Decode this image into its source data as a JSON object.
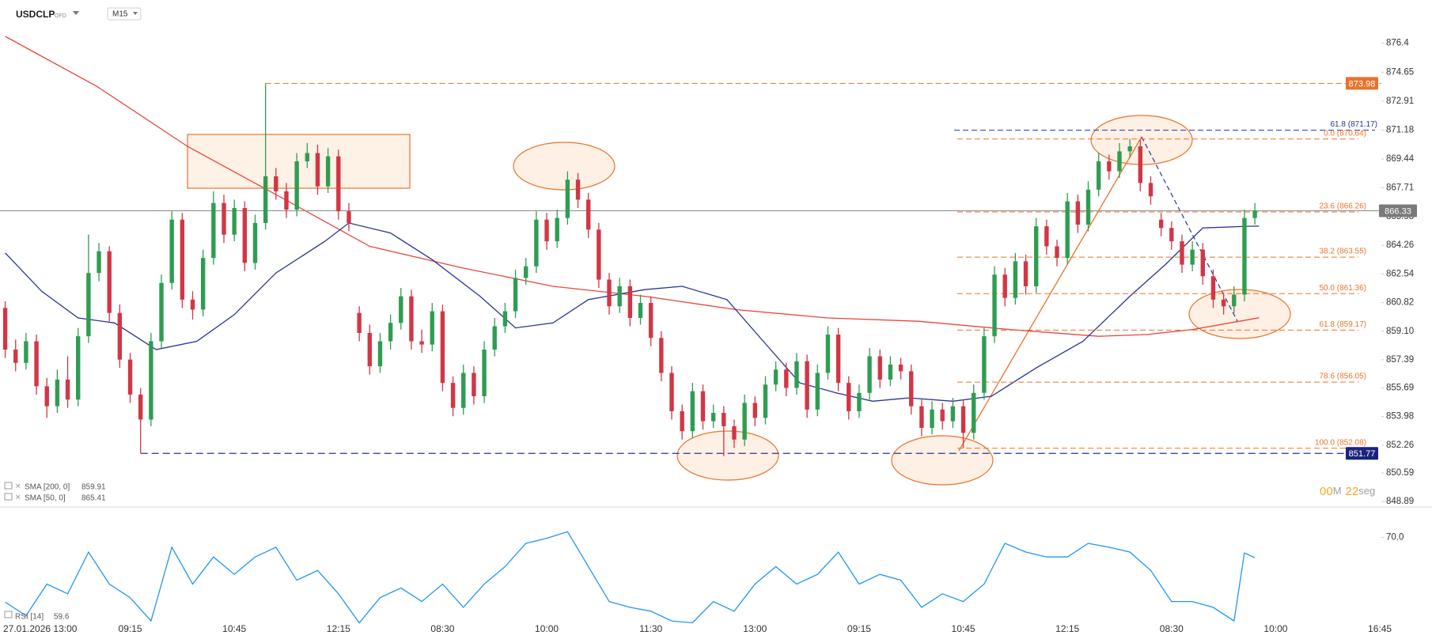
{
  "chart_data": {
    "type": "candlestick",
    "symbol": "USDCLP",
    "market": "OFD",
    "timeframe": "M15",
    "up_color": "#2e9d52",
    "down_color": "#d23645",
    "xlim": [
      -0.5,
      132.3
    ],
    "xticks": [
      {
        "value": 6,
        "label": "27.01.2026 13:00"
      },
      {
        "value": 12,
        "label": "09:15"
      },
      {
        "value": 22,
        "label": "10:45"
      },
      {
        "value": 32,
        "label": "12:15"
      },
      {
        "value": 42,
        "label": "08:30"
      },
      {
        "value": 52,
        "label": "10:00"
      },
      {
        "value": 62,
        "label": "11:30"
      },
      {
        "value": 72,
        "label": "13:00"
      },
      {
        "value": 82,
        "label": "09:15"
      },
      {
        "value": 92,
        "label": "10:45"
      },
      {
        "value": 102,
        "label": "12:15"
      },
      {
        "value": 112,
        "label": "08:30"
      },
      {
        "value": 122,
        "label": "10:00"
      },
      {
        "value": 132,
        "label": "16:45"
      }
    ],
    "ylim": [
      848.6,
      878.7
    ],
    "yticks": [
      876.4,
      874.65,
      872.91,
      871.18,
      869.44,
      867.71,
      865.98,
      864.26,
      862.54,
      860.82,
      {
        "value": 859.1,
        "label": "859.10"
      },
      857.39,
      855.69,
      853.98,
      852.26,
      850.59,
      848.89
    ],
    "ohlc": [
      [
        860.5,
        860.9,
        857.5,
        858.0
      ],
      [
        858.0,
        858.6,
        856.7,
        857.2
      ],
      [
        857.2,
        859.0,
        856.8,
        858.5
      ],
      [
        858.5,
        858.9,
        855.3,
        855.8
      ],
      [
        855.8,
        856.3,
        853.9,
        854.6
      ],
      [
        854.6,
        856.8,
        854.2,
        856.2
      ],
      [
        856.2,
        857.6,
        854.5,
        855.0
      ],
      [
        855.0,
        859.3,
        854.6,
        858.8
      ],
      [
        858.8,
        864.9,
        858.4,
        862.6
      ],
      [
        862.6,
        864.4,
        862.1,
        863.9
      ],
      [
        863.9,
        864.2,
        859.7,
        860.2
      ],
      [
        860.2,
        860.7,
        856.9,
        857.4
      ],
      [
        857.4,
        857.8,
        854.8,
        855.3
      ],
      [
        855.3,
        855.7,
        851.77,
        853.8
      ],
      [
        853.8,
        859.0,
        853.4,
        858.5
      ],
      [
        858.5,
        862.5,
        858.1,
        862.0
      ],
      [
        862.0,
        866.3,
        861.6,
        865.8
      ],
      [
        865.8,
        866.2,
        860.5,
        861.0
      ],
      [
        861.0,
        861.5,
        859.8,
        860.4
      ],
      [
        860.4,
        864.0,
        860.0,
        863.5
      ],
      [
        863.5,
        867.5,
        863.1,
        866.8
      ],
      [
        866.8,
        867.3,
        864.4,
        864.9
      ],
      [
        864.9,
        867.0,
        864.5,
        866.5
      ],
      [
        866.5,
        866.9,
        862.7,
        863.2
      ],
      [
        863.2,
        866.1,
        862.8,
        865.6
      ],
      [
        865.6,
        873.98,
        865.2,
        868.4
      ],
      [
        868.4,
        868.9,
        867.0,
        867.5
      ],
      [
        867.5,
        868.0,
        865.9,
        866.4
      ],
      [
        866.4,
        869.8,
        866.0,
        869.3
      ],
      [
        869.3,
        870.4,
        868.9,
        869.8
      ],
      [
        869.8,
        870.3,
        867.3,
        867.8
      ],
      [
        867.8,
        870.1,
        867.4,
        869.6
      ],
      [
        869.6,
        870.0,
        865.8,
        866.3
      ],
      [
        866.3,
        866.8,
        865.1,
        865.6
      ],
      [
        860.2,
        860.6,
        858.5,
        859.0
      ],
      [
        859.0,
        859.5,
        856.5,
        857.0
      ],
      [
        857.0,
        859.0,
        856.6,
        858.5
      ],
      [
        858.5,
        860.1,
        858.0,
        859.6
      ],
      [
        859.6,
        861.7,
        859.2,
        861.2
      ],
      [
        861.2,
        861.6,
        858.0,
        858.5
      ],
      [
        858.5,
        859.2,
        857.8,
        858.3
      ],
      [
        858.3,
        860.8,
        857.9,
        860.3
      ],
      [
        860.3,
        860.7,
        855.5,
        856.0
      ],
      [
        856.0,
        856.4,
        854.0,
        854.5
      ],
      [
        854.5,
        857.1,
        854.1,
        856.6
      ],
      [
        856.6,
        857.0,
        854.7,
        855.2
      ],
      [
        855.2,
        858.5,
        854.8,
        858.0
      ],
      [
        858.0,
        859.9,
        857.6,
        859.4
      ],
      [
        859.4,
        860.8,
        859.0,
        860.3
      ],
      [
        860.3,
        862.8,
        859.9,
        862.3
      ],
      [
        862.3,
        863.5,
        861.9,
        863.0
      ],
      [
        863.0,
        866.3,
        862.6,
        865.8
      ],
      [
        865.8,
        866.2,
        864.0,
        864.5
      ],
      [
        864.5,
        866.4,
        864.1,
        865.9
      ],
      [
        865.9,
        868.7,
        865.5,
        868.2
      ],
      [
        868.2,
        868.6,
        866.5,
        867.0
      ],
      [
        867.0,
        867.4,
        864.7,
        865.2
      ],
      [
        865.2,
        865.6,
        861.7,
        862.2
      ],
      [
        862.2,
        862.6,
        860.1,
        860.6
      ],
      [
        860.6,
        862.3,
        860.2,
        861.8
      ],
      [
        861.8,
        862.2,
        859.4,
        859.9
      ],
      [
        859.9,
        861.3,
        859.5,
        860.8
      ],
      [
        860.8,
        861.2,
        858.2,
        858.7
      ],
      [
        858.7,
        859.1,
        856.1,
        856.6
      ],
      [
        856.6,
        857.0,
        853.8,
        854.3
      ],
      [
        854.3,
        854.7,
        852.6,
        853.1
      ],
      [
        853.1,
        856.0,
        852.7,
        855.5
      ],
      [
        855.5,
        855.9,
        853.2,
        853.7
      ],
      [
        853.7,
        854.7,
        853.3,
        854.2
      ],
      [
        854.2,
        854.6,
        851.6,
        853.4
      ],
      [
        853.4,
        853.8,
        852.1,
        852.6
      ],
      [
        852.6,
        855.3,
        852.2,
        854.8
      ],
      [
        854.8,
        855.2,
        853.4,
        853.9
      ],
      [
        853.9,
        856.4,
        853.5,
        855.9
      ],
      [
        855.9,
        857.3,
        855.5,
        856.8
      ],
      [
        856.8,
        857.2,
        855.2,
        855.7
      ],
      [
        855.7,
        857.8,
        855.3,
        857.3
      ],
      [
        857.3,
        857.7,
        853.9,
        854.4
      ],
      [
        854.4,
        857.1,
        854.0,
        856.6
      ],
      [
        856.6,
        859.4,
        856.2,
        858.9
      ],
      [
        858.9,
        859.3,
        855.5,
        856.0
      ],
      [
        856.0,
        856.4,
        853.8,
        854.3
      ],
      [
        854.3,
        855.9,
        853.9,
        855.4
      ],
      [
        855.4,
        858.1,
        855.0,
        857.6
      ],
      [
        857.6,
        858.0,
        855.7,
        856.2
      ],
      [
        856.2,
        857.6,
        855.8,
        857.1
      ],
      [
        857.1,
        857.5,
        856.2,
        856.7
      ],
      [
        856.7,
        857.1,
        854.1,
        854.6
      ],
      [
        854.6,
        855.0,
        852.8,
        853.3
      ],
      [
        853.3,
        854.9,
        852.9,
        854.4
      ],
      [
        854.4,
        854.8,
        853.2,
        853.7
      ],
      [
        853.7,
        855.1,
        853.3,
        854.6
      ],
      [
        854.6,
        855.0,
        852.08,
        853.0
      ],
      [
        853.0,
        855.9,
        852.6,
        855.4
      ],
      [
        855.4,
        859.3,
        855.0,
        858.8
      ],
      [
        858.8,
        863.0,
        858.4,
        862.5
      ],
      [
        862.5,
        862.9,
        860.6,
        861.1
      ],
      [
        861.1,
        863.8,
        860.7,
        863.3
      ],
      [
        863.3,
        863.7,
        861.3,
        861.8
      ],
      [
        861.8,
        865.9,
        861.4,
        865.4
      ],
      [
        865.4,
        865.8,
        863.7,
        864.2
      ],
      [
        864.2,
        864.6,
        863.0,
        863.5
      ],
      [
        863.5,
        867.4,
        863.1,
        866.9
      ],
      [
        866.9,
        867.3,
        865.0,
        865.5
      ],
      [
        865.5,
        868.1,
        865.1,
        867.6
      ],
      [
        867.6,
        869.8,
        867.2,
        869.3
      ],
      [
        869.3,
        869.7,
        868.2,
        868.7
      ],
      [
        868.7,
        870.4,
        868.3,
        869.9
      ],
      [
        869.9,
        870.64,
        869.5,
        870.2
      ],
      [
        870.2,
        870.6,
        867.5,
        868.0
      ],
      [
        868.0,
        868.4,
        866.7,
        867.2
      ],
      [
        865.8,
        866.2,
        864.8,
        865.3
      ],
      [
        865.3,
        865.7,
        864.0,
        864.5
      ],
      [
        864.5,
        864.9,
        862.6,
        863.1
      ],
      [
        863.1,
        864.5,
        862.7,
        864.0
      ],
      [
        864.0,
        864.4,
        861.9,
        862.4
      ],
      [
        862.4,
        862.8,
        860.5,
        861.0
      ],
      [
        861.0,
        861.4,
        860.1,
        860.6
      ],
      [
        860.6,
        861.8,
        860.2,
        861.3
      ],
      [
        861.3,
        866.4,
        860.9,
        865.9
      ],
      [
        865.9,
        866.8,
        865.5,
        866.33
      ]
    ],
    "series": [
      {
        "name": "SMA [200, 0]",
        "color": "#e8463e",
        "x": [
          0,
          8.8,
          17.5,
          26.3,
          35,
          43.9,
          52.6,
          61.4,
          70.2,
          79,
          87.7,
          96.5,
          105,
          109.6,
          114,
          120.4
        ],
        "values": [
          876.8,
          873.8,
          870.2,
          867.2,
          864.2,
          862.9,
          861.8,
          861.2,
          860.4,
          859.9,
          859.7,
          859.2,
          858.8,
          858.9,
          859.2,
          859.91
        ]
      },
      {
        "name": "SMA [50, 0]",
        "color": "#283593",
        "x": [
          0,
          3.5,
          7,
          10.5,
          14.5,
          18.4,
          22,
          26,
          30.7,
          33,
          37,
          41,
          45.6,
          49,
          52.6,
          56,
          61.4,
          65,
          69.3,
          72.8,
          76.3,
          79.8,
          83.3,
          86.8,
          91,
          94.7,
          99,
          103.5,
          108,
          111.4,
          115,
          119.3,
          120.4
        ],
        "values": [
          863.8,
          861.5,
          859.9,
          859.6,
          858.0,
          858.5,
          860.1,
          862.6,
          864.5,
          865.6,
          865.0,
          863.4,
          861.2,
          859.3,
          859.6,
          861.0,
          861.6,
          861.8,
          861.0,
          858.5,
          856.0,
          855.4,
          854.9,
          855.1,
          854.9,
          855.2,
          856.9,
          858.5,
          861.2,
          863.1,
          865.3,
          865.4,
          865.41
        ]
      }
    ],
    "fib": [
      {
        "label": "61.8 (871.17)",
        "value": 871.17,
        "color": "#283593"
      },
      {
        "label": "0.0 (870.64)",
        "value": 870.64,
        "color": "#e8732c"
      },
      {
        "label": "23.6 (866.26)",
        "value": 866.26,
        "color": "#e8732c"
      },
      {
        "label": "38.2 (863.55)",
        "value": 863.55,
        "color": "#e8732c"
      },
      {
        "label": "50.0 (861.36)",
        "value": 861.36,
        "color": "#e8732c"
      },
      {
        "label": "61.8 (859.17)",
        "value": 859.17,
        "color": "#e8732c"
      },
      {
        "label": "78.6 (856.05)",
        "value": 856.05,
        "color": "#e8732c"
      },
      {
        "label": "100.0 (852.08)",
        "value": 852.08,
        "color": "#e8732c"
      }
    ],
    "rsi": {
      "name": "RSI [14]",
      "color": "#2196f3",
      "ylim": [
        25,
        78
      ],
      "yticks": [
        {
          "value": 70,
          "label": "70.0"
        }
      ],
      "x": [
        0,
        2,
        4,
        6,
        8,
        10,
        12,
        14,
        16,
        18,
        20,
        22,
        24,
        26,
        28,
        30,
        32,
        34,
        36,
        38,
        40,
        42,
        44,
        46,
        48,
        50,
        52,
        54,
        56,
        58,
        60,
        62,
        64,
        66,
        68,
        70,
        72,
        74,
        76,
        78,
        80,
        82,
        84,
        86,
        88,
        90,
        92,
        94,
        96,
        98,
        100,
        102,
        104,
        106,
        108,
        110,
        112,
        114,
        116,
        118,
        119,
        120
      ],
      "values": [
        36.7,
        29.7,
        46,
        41,
        62.5,
        46,
        39,
        27,
        65,
        46,
        60,
        51,
        60,
        65,
        48,
        53,
        41,
        26,
        39,
        44,
        37,
        46,
        34,
        46,
        55,
        67,
        69.6,
        73,
        55,
        37,
        34,
        32,
        27,
        26,
        37,
        32,
        46,
        55,
        46,
        51,
        62.5,
        46,
        51,
        48,
        34,
        41,
        37,
        46,
        67,
        62.5,
        60,
        60,
        67,
        65,
        62.5,
        53,
        37,
        37,
        34,
        27,
        62,
        59.6
      ]
    },
    "countdown": [
      "00",
      "M",
      "22",
      "seg"
    ]
  }
}
